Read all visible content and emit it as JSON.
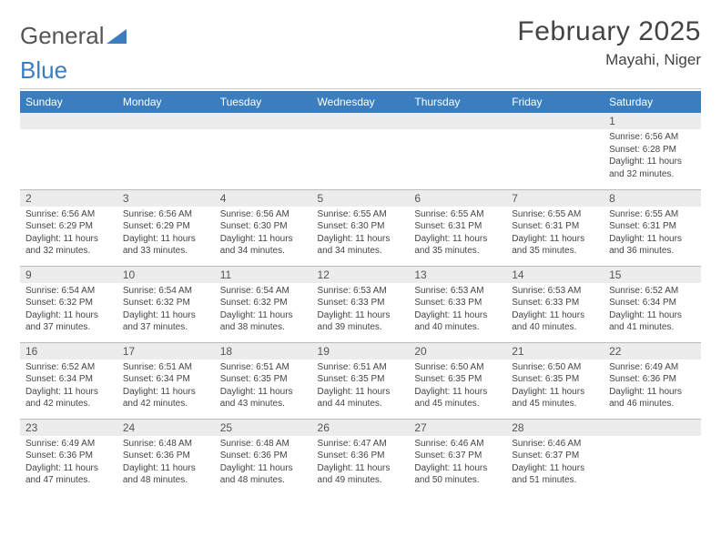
{
  "logo": {
    "part1": "General",
    "part2": "Blue"
  },
  "header": {
    "month_title": "February 2025",
    "location": "Mayahi, Niger"
  },
  "colors": {
    "header_bg": "#3a7ebf",
    "daynum_bg": "#ececec",
    "text": "#444444",
    "rule": "#bbbbbb"
  },
  "day_labels": [
    "Sunday",
    "Monday",
    "Tuesday",
    "Wednesday",
    "Thursday",
    "Friday",
    "Saturday"
  ],
  "weeks": [
    [
      {
        "n": "",
        "sr": "",
        "ss": "",
        "dl": ""
      },
      {
        "n": "",
        "sr": "",
        "ss": "",
        "dl": ""
      },
      {
        "n": "",
        "sr": "",
        "ss": "",
        "dl": ""
      },
      {
        "n": "",
        "sr": "",
        "ss": "",
        "dl": ""
      },
      {
        "n": "",
        "sr": "",
        "ss": "",
        "dl": ""
      },
      {
        "n": "",
        "sr": "",
        "ss": "",
        "dl": ""
      },
      {
        "n": "1",
        "sr": "Sunrise: 6:56 AM",
        "ss": "Sunset: 6:28 PM",
        "dl": "Daylight: 11 hours and 32 minutes."
      }
    ],
    [
      {
        "n": "2",
        "sr": "Sunrise: 6:56 AM",
        "ss": "Sunset: 6:29 PM",
        "dl": "Daylight: 11 hours and 32 minutes."
      },
      {
        "n": "3",
        "sr": "Sunrise: 6:56 AM",
        "ss": "Sunset: 6:29 PM",
        "dl": "Daylight: 11 hours and 33 minutes."
      },
      {
        "n": "4",
        "sr": "Sunrise: 6:56 AM",
        "ss": "Sunset: 6:30 PM",
        "dl": "Daylight: 11 hours and 34 minutes."
      },
      {
        "n": "5",
        "sr": "Sunrise: 6:55 AM",
        "ss": "Sunset: 6:30 PM",
        "dl": "Daylight: 11 hours and 34 minutes."
      },
      {
        "n": "6",
        "sr": "Sunrise: 6:55 AM",
        "ss": "Sunset: 6:31 PM",
        "dl": "Daylight: 11 hours and 35 minutes."
      },
      {
        "n": "7",
        "sr": "Sunrise: 6:55 AM",
        "ss": "Sunset: 6:31 PM",
        "dl": "Daylight: 11 hours and 35 minutes."
      },
      {
        "n": "8",
        "sr": "Sunrise: 6:55 AM",
        "ss": "Sunset: 6:31 PM",
        "dl": "Daylight: 11 hours and 36 minutes."
      }
    ],
    [
      {
        "n": "9",
        "sr": "Sunrise: 6:54 AM",
        "ss": "Sunset: 6:32 PM",
        "dl": "Daylight: 11 hours and 37 minutes."
      },
      {
        "n": "10",
        "sr": "Sunrise: 6:54 AM",
        "ss": "Sunset: 6:32 PM",
        "dl": "Daylight: 11 hours and 37 minutes."
      },
      {
        "n": "11",
        "sr": "Sunrise: 6:54 AM",
        "ss": "Sunset: 6:32 PM",
        "dl": "Daylight: 11 hours and 38 minutes."
      },
      {
        "n": "12",
        "sr": "Sunrise: 6:53 AM",
        "ss": "Sunset: 6:33 PM",
        "dl": "Daylight: 11 hours and 39 minutes."
      },
      {
        "n": "13",
        "sr": "Sunrise: 6:53 AM",
        "ss": "Sunset: 6:33 PM",
        "dl": "Daylight: 11 hours and 40 minutes."
      },
      {
        "n": "14",
        "sr": "Sunrise: 6:53 AM",
        "ss": "Sunset: 6:33 PM",
        "dl": "Daylight: 11 hours and 40 minutes."
      },
      {
        "n": "15",
        "sr": "Sunrise: 6:52 AM",
        "ss": "Sunset: 6:34 PM",
        "dl": "Daylight: 11 hours and 41 minutes."
      }
    ],
    [
      {
        "n": "16",
        "sr": "Sunrise: 6:52 AM",
        "ss": "Sunset: 6:34 PM",
        "dl": "Daylight: 11 hours and 42 minutes."
      },
      {
        "n": "17",
        "sr": "Sunrise: 6:51 AM",
        "ss": "Sunset: 6:34 PM",
        "dl": "Daylight: 11 hours and 42 minutes."
      },
      {
        "n": "18",
        "sr": "Sunrise: 6:51 AM",
        "ss": "Sunset: 6:35 PM",
        "dl": "Daylight: 11 hours and 43 minutes."
      },
      {
        "n": "19",
        "sr": "Sunrise: 6:51 AM",
        "ss": "Sunset: 6:35 PM",
        "dl": "Daylight: 11 hours and 44 minutes."
      },
      {
        "n": "20",
        "sr": "Sunrise: 6:50 AM",
        "ss": "Sunset: 6:35 PM",
        "dl": "Daylight: 11 hours and 45 minutes."
      },
      {
        "n": "21",
        "sr": "Sunrise: 6:50 AM",
        "ss": "Sunset: 6:35 PM",
        "dl": "Daylight: 11 hours and 45 minutes."
      },
      {
        "n": "22",
        "sr": "Sunrise: 6:49 AM",
        "ss": "Sunset: 6:36 PM",
        "dl": "Daylight: 11 hours and 46 minutes."
      }
    ],
    [
      {
        "n": "23",
        "sr": "Sunrise: 6:49 AM",
        "ss": "Sunset: 6:36 PM",
        "dl": "Daylight: 11 hours and 47 minutes."
      },
      {
        "n": "24",
        "sr": "Sunrise: 6:48 AM",
        "ss": "Sunset: 6:36 PM",
        "dl": "Daylight: 11 hours and 48 minutes."
      },
      {
        "n": "25",
        "sr": "Sunrise: 6:48 AM",
        "ss": "Sunset: 6:36 PM",
        "dl": "Daylight: 11 hours and 48 minutes."
      },
      {
        "n": "26",
        "sr": "Sunrise: 6:47 AM",
        "ss": "Sunset: 6:36 PM",
        "dl": "Daylight: 11 hours and 49 minutes."
      },
      {
        "n": "27",
        "sr": "Sunrise: 6:46 AM",
        "ss": "Sunset: 6:37 PM",
        "dl": "Daylight: 11 hours and 50 minutes."
      },
      {
        "n": "28",
        "sr": "Sunrise: 6:46 AM",
        "ss": "Sunset: 6:37 PM",
        "dl": "Daylight: 11 hours and 51 minutes."
      },
      {
        "n": "",
        "sr": "",
        "ss": "",
        "dl": ""
      }
    ]
  ]
}
